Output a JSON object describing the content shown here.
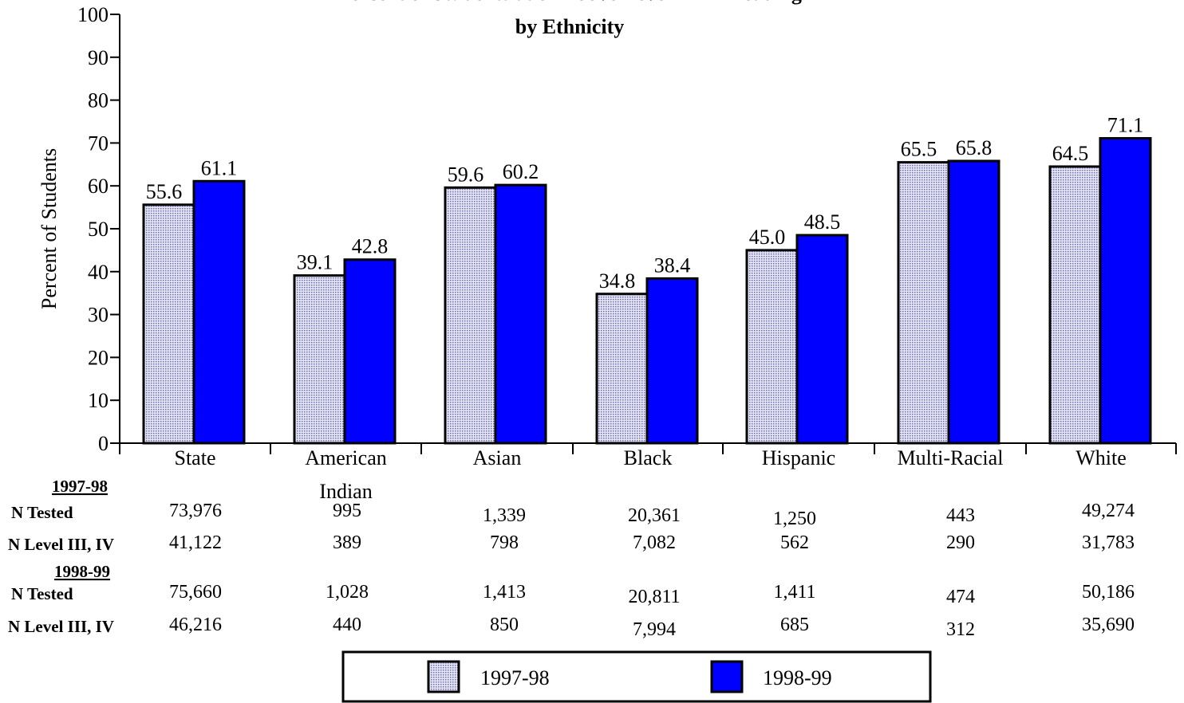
{
  "chart_data": {
    "type": "bar",
    "title": [
      "Percent of Students at or Above Level III in Reading",
      "by Ethnicity"
    ],
    "ylabel": "Percent of Students",
    "ylim": [
      0,
      100
    ],
    "yticks": [
      0,
      10,
      20,
      30,
      40,
      50,
      60,
      70,
      80,
      90,
      100
    ],
    "categories": [
      "State",
      "American Indian",
      "Asian",
      "Black",
      "Hispanic",
      "Multi-Racial",
      "White"
    ],
    "category_lines": [
      [
        "State"
      ],
      [
        "American",
        "Indian"
      ],
      [
        "Asian"
      ],
      [
        "Black"
      ],
      [
        "Hispanic"
      ],
      [
        "Multi-Racial"
      ],
      [
        "White"
      ]
    ],
    "series": [
      {
        "name": "1997-98",
        "values": [
          55.6,
          39.1,
          59.6,
          34.8,
          45.0,
          65.5,
          64.5
        ],
        "labels": [
          "55.6",
          "39.1",
          "59.6",
          "34.8",
          "45.0",
          "65.5",
          "64.5"
        ],
        "color": "#c8c8e6"
      },
      {
        "name": "1998-99",
        "values": [
          61.1,
          42.8,
          60.2,
          38.4,
          48.5,
          65.8,
          71.1
        ],
        "labels": [
          "61.1",
          "42.8",
          "60.2",
          "38.4",
          "48.5",
          "65.8",
          "71.1"
        ],
        "color": "#0000ff"
      }
    ],
    "grid": false,
    "legend": "bottom-center"
  },
  "table": {
    "sections": [
      {
        "header": "1997-98",
        "rows": [
          {
            "label": "N Tested",
            "values": [
              "73,976",
              "995",
              "1,339",
              "20,361",
              "1,250",
              "443",
              "49,274"
            ]
          },
          {
            "label": "N Level III, IV",
            "values": [
              "41,122",
              "389",
              "798",
              "7,082",
              "562",
              "290",
              "31,783"
            ]
          }
        ]
      },
      {
        "header": "1998-99",
        "rows": [
          {
            "label": "N Tested",
            "values": [
              "75,660",
              "1,028",
              "1,413",
              "20,811",
              "1,411",
              "474",
              "50,186"
            ]
          },
          {
            "label": "N Level III, IV",
            "values": [
              "46,216",
              "440",
              "850",
              "7,994",
              "685",
              "312",
              "35,690"
            ]
          }
        ]
      }
    ]
  }
}
